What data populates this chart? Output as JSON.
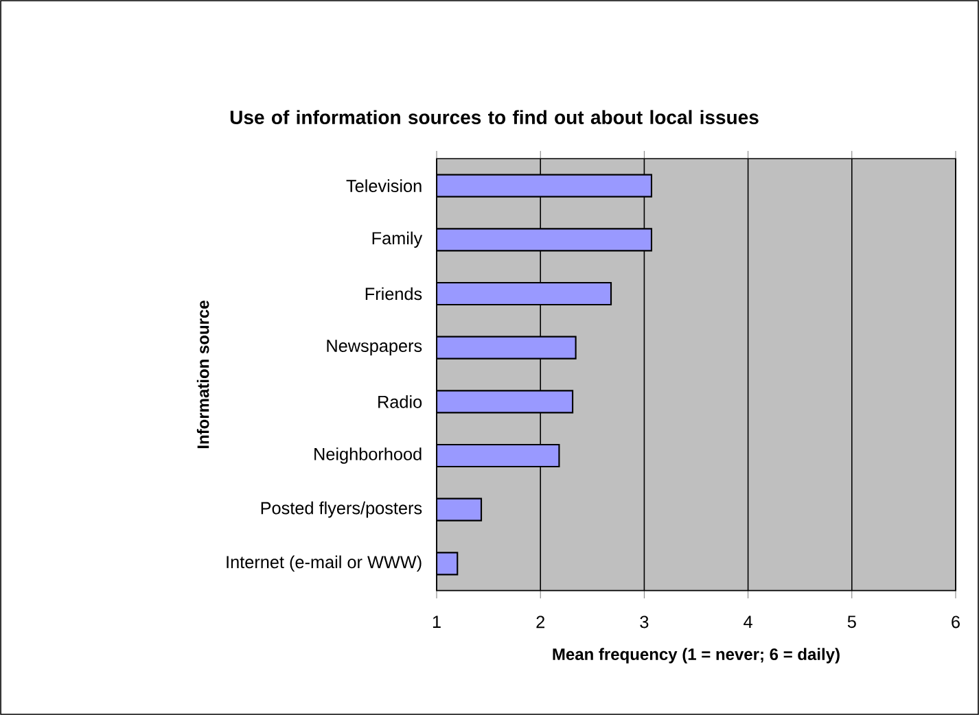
{
  "chart_data": {
    "type": "bar",
    "orientation": "horizontal",
    "title": "Use of information sources to find out about local issues",
    "xlabel": "Mean frequency (1 = never; 6 = daily)",
    "ylabel": "Information source",
    "categories": [
      "Television",
      "Family",
      "Friends",
      "Newspapers",
      "Radio",
      "Neighborhood",
      "Posted flyers/posters",
      "Internet (e-mail or WWW)"
    ],
    "values": [
      3.07,
      3.07,
      2.68,
      2.34,
      2.31,
      2.18,
      1.43,
      1.2
    ],
    "color": "#9999ff",
    "xlim": [
      1,
      6
    ],
    "xticks": [
      1,
      2,
      3,
      4,
      5,
      6
    ],
    "grid": "x"
  }
}
